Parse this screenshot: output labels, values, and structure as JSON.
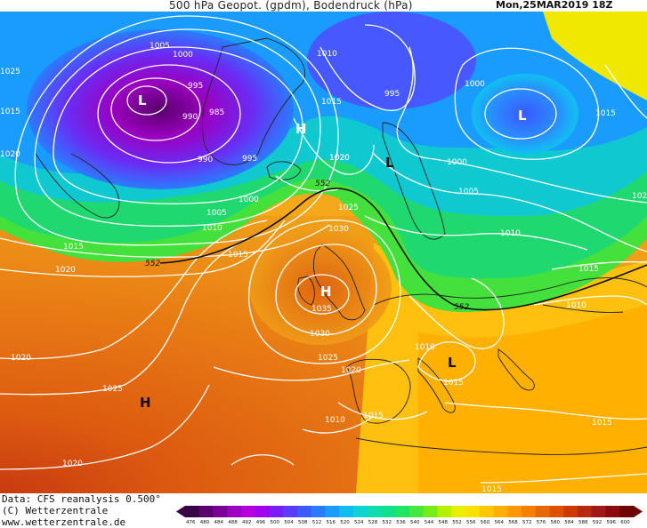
{
  "header": {
    "title": "500 hPa Geopot. (gpdm), Bodendruck (hPa)",
    "datetime": "Mon,25MAR2019 18Z"
  },
  "footer": {
    "line1": "Data: CFS reanalysis 0.500°",
    "line2": "(C) Wetterzentrale",
    "line3": "www.wetterzentrale.de"
  },
  "colorbar": {
    "labels": [
      "476",
      "480",
      "484",
      "488",
      "492",
      "496",
      "500",
      "504",
      "508",
      "512",
      "516",
      "520",
      "524",
      "528",
      "532",
      "536",
      "540",
      "544",
      "548",
      "552",
      "556",
      "560",
      "564",
      "568",
      "572",
      "576",
      "580",
      "584",
      "588",
      "592",
      "596",
      "600"
    ],
    "colors": [
      "#3a0046",
      "#5a006e",
      "#7a0096",
      "#9a00be",
      "#b400dc",
      "#a000f0",
      "#7a1cf8",
      "#5a3cff",
      "#3a5cff",
      "#2a7cff",
      "#1a9cff",
      "#10bcf0",
      "#10d4d4",
      "#10dcb0",
      "#10e08c",
      "#20e464",
      "#44e83c",
      "#78ec18",
      "#b4f000",
      "#e8f000",
      "#ffe000",
      "#ffc800",
      "#ffb000",
      "#ff9800",
      "#f58000",
      "#e86800",
      "#dc5000",
      "#cc3800",
      "#b82810",
      "#a01818",
      "#8a0c0c",
      "#6e0404"
    ],
    "arrow_left": "#3a0046",
    "arrow_right": "#6e0404"
  },
  "pressure_centers": [
    {
      "text": "L",
      "color": "#ffffff"
    },
    {
      "text": "H",
      "color": "#ffffff"
    },
    {
      "text": "L",
      "color": "#ffffff"
    },
    {
      "text": "L",
      "color": "#111111"
    },
    {
      "text": "H",
      "color": "#ffffff"
    },
    {
      "text": "H",
      "color": "#111111"
    },
    {
      "text": "L",
      "color": "#111111"
    }
  ],
  "isobar_labels": [
    "1005",
    "1000",
    "995",
    "990",
    "985",
    "990",
    "995",
    "1000",
    "1005",
    "1010",
    "1015",
    "1020",
    "1015",
    "1020",
    "1010",
    "1015",
    "995",
    "1000",
    "1015",
    "1020",
    "1025",
    "1030",
    "1035",
    "1030",
    "1025",
    "1020",
    "1015",
    "1010",
    "1015",
    "1010",
    "1000",
    "1005",
    "1010",
    "1015",
    "1010",
    "1015",
    "1020",
    "1025",
    "1020",
    "1015",
    "1015",
    "1020",
    "1025",
    "1020"
  ],
  "geopot_labels": [
    "552",
    "552",
    "552"
  ]
}
